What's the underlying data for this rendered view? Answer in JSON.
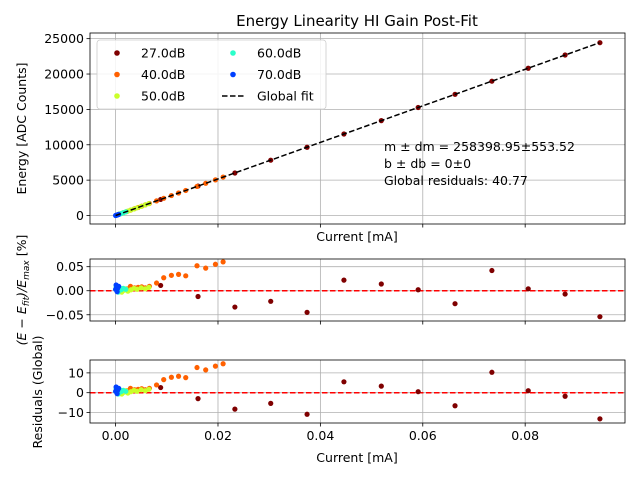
{
  "chart_data": [
    {
      "type": "scatter",
      "panel": "top",
      "title": "Energy Linearity HI Gain Post-Fit",
      "xlabel": "Current [mA]",
      "ylabel": "Energy [ADC Counts]",
      "xlim": [
        -0.005,
        0.0995
      ],
      "ylim": [
        -1200,
        25800
      ],
      "xticks": [
        0.0,
        0.02,
        0.04,
        0.06,
        0.08
      ],
      "yticks": [
        0,
        5000,
        10000,
        15000,
        20000,
        25000
      ],
      "ytick_labels": [
        "0",
        "5000",
        "10000",
        "15000",
        "20000",
        "25000"
      ],
      "show_xtick_labels": false,
      "grid": true,
      "legend_position": "upper left",
      "legend": [
        {
          "label": "27.0dB",
          "marker": "dot",
          "color": "#7f0000"
        },
        {
          "label": "40.0dB",
          "marker": "dot",
          "color": "#ff6000"
        },
        {
          "label": "50.0dB",
          "marker": "dot",
          "color": "#caff2a"
        },
        {
          "label": "60.0dB",
          "marker": "dot",
          "color": "#2affca"
        },
        {
          "label": "70.0dB",
          "marker": "dot",
          "color": "#0040ff"
        },
        {
          "label": "Global fit",
          "marker": "dashed-line",
          "color": "#000000"
        }
      ],
      "annotations": [
        "m ± dm = 258398.95±553.52",
        "b ± db = 0±0",
        "Global residuals: 40.77"
      ],
      "fit_line": {
        "slope": 258398.95,
        "intercept": 0,
        "x": [
          0.0,
          0.0945
        ]
      },
      "series": [
        {
          "name": "27.0dB",
          "color": "#7f0000",
          "x": [
            0.0088,
            0.0161,
            0.0233,
            0.0303,
            0.0374,
            0.0446,
            0.0519,
            0.0591,
            0.0663,
            0.0735,
            0.0806,
            0.0878,
            0.0946
          ],
          "y": [
            2270,
            4160,
            6010,
            7820,
            9650,
            11520,
            13410,
            15270,
            17130,
            18990,
            20820,
            22690,
            24430
          ]
        },
        {
          "name": "40.0dB",
          "color": "#ff6000",
          "x": [
            0.0006,
            0.0015,
            0.0022,
            0.0029,
            0.0037,
            0.0044,
            0.0051,
            0.0058,
            0.0066,
            0.008,
            0.0094,
            0.0109,
            0.0123,
            0.0137,
            0.0159,
            0.0176,
            0.0195,
            0.021
          ],
          "y": [
            160,
            390,
            570,
            750,
            960,
            1140,
            1320,
            1500,
            1710,
            2070,
            2430,
            2820,
            3180,
            3540,
            4110,
            4550,
            5040,
            5430
          ]
        },
        {
          "name": "50.0dB",
          "color": "#caff2a",
          "x": [
            0.0003,
            0.0006,
            0.0009,
            0.0012,
            0.0016,
            0.002,
            0.0024,
            0.003,
            0.0036,
            0.0042,
            0.005,
            0.0058,
            0.0065
          ],
          "y": [
            80,
            160,
            230,
            310,
            410,
            520,
            620,
            780,
            930,
            1090,
            1290,
            1500,
            1680
          ]
        },
        {
          "name": "60.0dB",
          "color": "#2affca",
          "x": [
            0.0001,
            0.0003,
            0.0005,
            0.0008,
            0.0011,
            0.0015,
            0.002
          ],
          "y": [
            30,
            80,
            130,
            210,
            280,
            390,
            520
          ]
        },
        {
          "name": "70.0dB",
          "color": "#0040ff",
          "x": [
            0.0,
            0.0001,
            0.0002,
            0.0003,
            0.0004,
            0.0006
          ],
          "y": [
            0,
            30,
            50,
            80,
            100,
            160
          ]
        }
      ]
    },
    {
      "type": "scatter",
      "panel": "middle",
      "xlabel": "Current [mA]",
      "ylabel": "(E − E_fit)/E_max [%]",
      "ylabel_parts": [
        "(E − E",
        "fit",
        ")/E",
        "max",
        " [%]"
      ],
      "xlim": [
        -0.005,
        0.0995
      ],
      "ylim": [
        -0.063,
        0.066
      ],
      "yticks": [
        -0.05,
        0.0,
        0.05
      ],
      "ytick_labels": [
        "−0.05",
        "0.00",
        "0.05"
      ],
      "show_xtick_labels": false,
      "grid": true,
      "reference_line": {
        "y": 0,
        "style": "dashed",
        "color": "#ff0000"
      },
      "series": [
        {
          "name": "27.0dB",
          "color": "#7f0000",
          "x": [
            0.0088,
            0.0161,
            0.0233,
            0.0303,
            0.0374,
            0.0446,
            0.0519,
            0.0591,
            0.0663,
            0.0735,
            0.0806,
            0.0878,
            0.0946
          ],
          "y": [
            0.011,
            -0.012,
            -0.034,
            -0.022,
            -0.045,
            0.022,
            0.014,
            0.002,
            -0.027,
            0.042,
            0.004,
            -0.007,
            -0.054
          ]
        },
        {
          "name": "40.0dB",
          "color": "#ff6000",
          "x": [
            0.0006,
            0.0015,
            0.0022,
            0.0029,
            0.0037,
            0.0044,
            0.0051,
            0.0058,
            0.0066,
            0.008,
            0.0094,
            0.0109,
            0.0123,
            0.0137,
            0.0159,
            0.0176,
            0.0195,
            0.021
          ],
          "y": [
            0.003,
            0.002,
            0.004,
            0.009,
            0.006,
            0.007,
            0.008,
            0.006,
            0.009,
            0.016,
            0.027,
            0.032,
            0.034,
            0.031,
            0.052,
            0.047,
            0.055,
            0.06
          ]
        },
        {
          "name": "50.0dB",
          "color": "#caff2a",
          "x": [
            0.0003,
            0.0006,
            0.0009,
            0.0012,
            0.0016,
            0.002,
            0.0024,
            0.003,
            0.0036,
            0.0042,
            0.005,
            0.0058,
            0.0065
          ],
          "y": [
            0.002,
            -0.002,
            0.003,
            -0.003,
            0.001,
            0.004,
            -0.001,
            0.002,
            0.005,
            0.003,
            0.006,
            0.004,
            0.007
          ]
        },
        {
          "name": "60.0dB",
          "color": "#2affca",
          "x": [
            0.0001,
            0.0003,
            0.0005,
            0.0008,
            0.0011,
            0.0015,
            0.002
          ],
          "y": [
            0.008,
            0.004,
            -0.003,
            0.006,
            0.002,
            0.005,
            0.003
          ]
        },
        {
          "name": "70.0dB",
          "color": "#0040ff",
          "x": [
            0.0,
            0.0001,
            0.0002,
            0.0003,
            0.0004,
            0.0006
          ],
          "y": [
            0.003,
            0.012,
            0.007,
            -0.002,
            0.005,
            0.009
          ]
        }
      ]
    },
    {
      "type": "scatter",
      "panel": "bottom",
      "xlabel": "Current [mA]",
      "ylabel": "Residuals (Global)",
      "xlim": [
        -0.005,
        0.0995
      ],
      "ylim": [
        -15.3,
        16.5
      ],
      "xticks": [
        0.0,
        0.02,
        0.04,
        0.06,
        0.08
      ],
      "xtick_labels": [
        "0.00",
        "0.02",
        "0.04",
        "0.06",
        "0.08"
      ],
      "yticks": [
        -10,
        0,
        10
      ],
      "ytick_labels": [
        "−10",
        "0",
        "10"
      ],
      "show_xtick_labels": true,
      "grid": true,
      "reference_line": {
        "y": 0,
        "style": "dashed",
        "color": "#ff0000"
      },
      "series": [
        {
          "name": "27.0dB",
          "color": "#7f0000",
          "x": [
            0.0088,
            0.0161,
            0.0233,
            0.0303,
            0.0374,
            0.0446,
            0.0519,
            0.0591,
            0.0663,
            0.0735,
            0.0806,
            0.0878,
            0.0946
          ],
          "y": [
            2.6,
            -3.0,
            -8.3,
            -5.4,
            -10.9,
            5.5,
            3.3,
            0.5,
            -6.6,
            10.3,
            1.0,
            -1.8,
            -13.2
          ]
        },
        {
          "name": "40.0dB",
          "color": "#ff6000",
          "x": [
            0.0006,
            0.0015,
            0.0022,
            0.0029,
            0.0037,
            0.0044,
            0.0051,
            0.0058,
            0.0066,
            0.008,
            0.0094,
            0.0109,
            0.0123,
            0.0137,
            0.0159,
            0.0176,
            0.0195,
            0.021
          ],
          "y": [
            0.7,
            0.5,
            1.0,
            2.2,
            1.5,
            1.7,
            2.0,
            1.5,
            2.2,
            3.9,
            6.6,
            7.8,
            8.3,
            7.6,
            12.7,
            11.5,
            13.4,
            14.6
          ]
        },
        {
          "name": "50.0dB",
          "color": "#caff2a",
          "x": [
            0.0003,
            0.0006,
            0.0009,
            0.0012,
            0.0016,
            0.002,
            0.0024,
            0.003,
            0.0036,
            0.0042,
            0.005,
            0.0058,
            0.0065
          ],
          "y": [
            0.5,
            -0.5,
            0.7,
            -0.7,
            0.2,
            1.0,
            -0.2,
            0.5,
            1.2,
            0.7,
            1.5,
            1.0,
            1.7
          ]
        },
        {
          "name": "60.0dB",
          "color": "#2affca",
          "x": [
            0.0001,
            0.0003,
            0.0005,
            0.0008,
            0.0011,
            0.0015,
            0.002
          ],
          "y": [
            2.0,
            1.0,
            -0.7,
            1.5,
            0.5,
            1.2,
            0.7
          ]
        },
        {
          "name": "70.0dB",
          "color": "#0040ff",
          "x": [
            0.0,
            0.0001,
            0.0002,
            0.0003,
            0.0004,
            0.0006
          ],
          "y": [
            0.7,
            2.9,
            1.7,
            -0.5,
            1.2,
            2.2
          ]
        }
      ]
    }
  ]
}
